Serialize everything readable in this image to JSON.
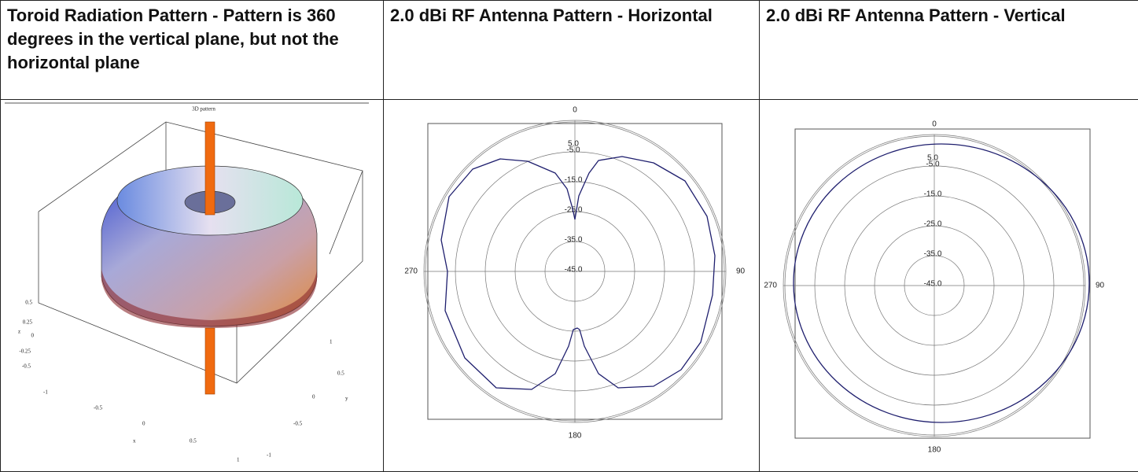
{
  "table": {
    "headers": [
      "Toroid Radiation Pattern - Pattern is 360 degrees in the vertical plane, but not the horizontal plane",
      "2.0 dBi RF Antenna Pattern - Horizontal",
      "2.0 dBi RF Antenna Pattern - Vertical"
    ],
    "figure_3d": {
      "title": "3D pattern",
      "z_ticks": [
        "0.5",
        "0.25",
        "0",
        "-0.25",
        "-0.5"
      ],
      "x_ticks": [
        "-1",
        "-0.5",
        "0",
        "0.5",
        "1"
      ],
      "y_ticks": [
        "1",
        "0.5",
        "0",
        "-0.5",
        "-1"
      ],
      "axis_names": [
        "x",
        "y",
        "z"
      ]
    },
    "polar_charts": [
      {
        "angle_labels": [
          "0",
          "90",
          "180",
          "270"
        ],
        "ring_labels": [
          "5.0",
          "-5.0",
          "-15.0",
          "-25.0",
          "-35.0",
          "-45.0"
        ]
      },
      {
        "angle_labels": [
          "0",
          "90",
          "180",
          "270"
        ],
        "ring_labels": [
          "5.0",
          "-5.0",
          "-15.0",
          "-25.0",
          "-35.0",
          "-45.0"
        ]
      }
    ]
  }
}
